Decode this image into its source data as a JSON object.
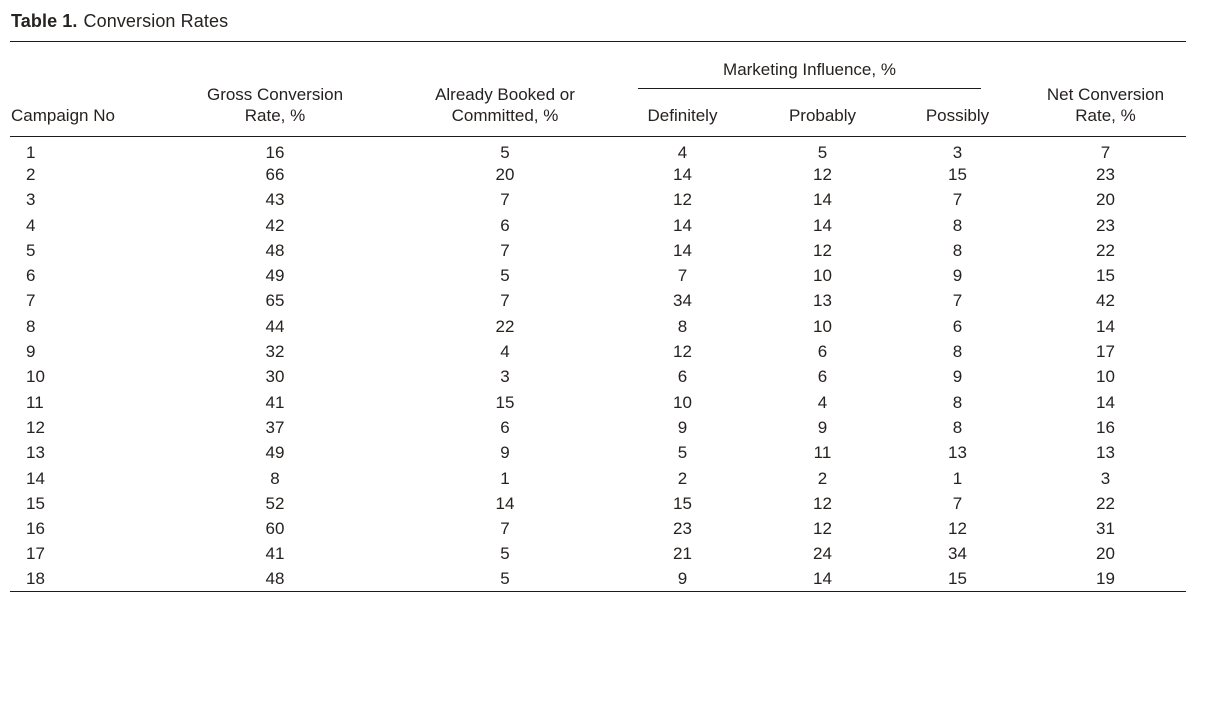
{
  "caption": {
    "label": "Table 1.",
    "text": "Conversion Rates"
  },
  "table": {
    "group_header": "Marketing Influence, %",
    "headers": [
      "Campaign No",
      "Gross Conversion\nRate, %",
      "Already Booked or\nCommitted, %",
      "Definitely",
      "Probably",
      "Possibly",
      "Net Conversion\nRate, %"
    ],
    "rows": [
      [
        1,
        16,
        5,
        4,
        5,
        3,
        7
      ],
      [
        2,
        66,
        20,
        14,
        12,
        15,
        23
      ],
      [
        3,
        43,
        7,
        12,
        14,
        7,
        20
      ],
      [
        4,
        42,
        6,
        14,
        14,
        8,
        23
      ],
      [
        5,
        48,
        7,
        14,
        12,
        8,
        22
      ],
      [
        6,
        49,
        5,
        7,
        10,
        9,
        15
      ],
      [
        7,
        65,
        7,
        34,
        13,
        7,
        42
      ],
      [
        8,
        44,
        22,
        8,
        10,
        6,
        14
      ],
      [
        9,
        32,
        4,
        12,
        6,
        8,
        17
      ],
      [
        10,
        30,
        3,
        6,
        6,
        9,
        10
      ],
      [
        11,
        41,
        15,
        10,
        4,
        8,
        14
      ],
      [
        12,
        37,
        6,
        9,
        9,
        8,
        16
      ],
      [
        13,
        49,
        9,
        5,
        11,
        13,
        13
      ],
      [
        14,
        8,
        1,
        2,
        2,
        1,
        3
      ],
      [
        15,
        52,
        14,
        15,
        12,
        7,
        22
      ],
      [
        16,
        60,
        7,
        23,
        12,
        12,
        31
      ],
      [
        17,
        41,
        5,
        21,
        24,
        34,
        20
      ],
      [
        18,
        48,
        5,
        9,
        14,
        15,
        19
      ]
    ]
  },
  "colors": {
    "text": "#262220",
    "rule": "#1c1c1c",
    "background": "#ffffff"
  },
  "chart_data": {
    "type": "table",
    "title": "Table 1. Conversion Rates",
    "group_header": "Marketing Influence, % (spans Definitely, Probably, Possibly)",
    "columns": [
      "Campaign No",
      "Gross Conversion Rate, %",
      "Already Booked or Committed, %",
      "Definitely",
      "Probably",
      "Possibly",
      "Net Conversion Rate, %"
    ],
    "rows": [
      [
        1,
        16,
        5,
        4,
        5,
        3,
        7
      ],
      [
        2,
        66,
        20,
        14,
        12,
        15,
        23
      ],
      [
        3,
        43,
        7,
        12,
        14,
        7,
        20
      ],
      [
        4,
        42,
        6,
        14,
        14,
        8,
        23
      ],
      [
        5,
        48,
        7,
        14,
        12,
        8,
        22
      ],
      [
        6,
        49,
        5,
        7,
        10,
        9,
        15
      ],
      [
        7,
        65,
        7,
        34,
        13,
        7,
        42
      ],
      [
        8,
        44,
        22,
        8,
        10,
        6,
        14
      ],
      [
        9,
        32,
        4,
        12,
        6,
        8,
        17
      ],
      [
        10,
        30,
        3,
        6,
        6,
        9,
        10
      ],
      [
        11,
        41,
        15,
        10,
        4,
        8,
        14
      ],
      [
        12,
        37,
        6,
        9,
        9,
        8,
        16
      ],
      [
        13,
        49,
        9,
        5,
        11,
        13,
        13
      ],
      [
        14,
        8,
        1,
        2,
        2,
        1,
        3
      ],
      [
        15,
        52,
        14,
        15,
        12,
        7,
        22
      ],
      [
        16,
        60,
        7,
        23,
        12,
        12,
        31
      ],
      [
        17,
        41,
        5,
        21,
        24,
        34,
        20
      ],
      [
        18,
        48,
        5,
        9,
        14,
        15,
        19
      ]
    ]
  }
}
